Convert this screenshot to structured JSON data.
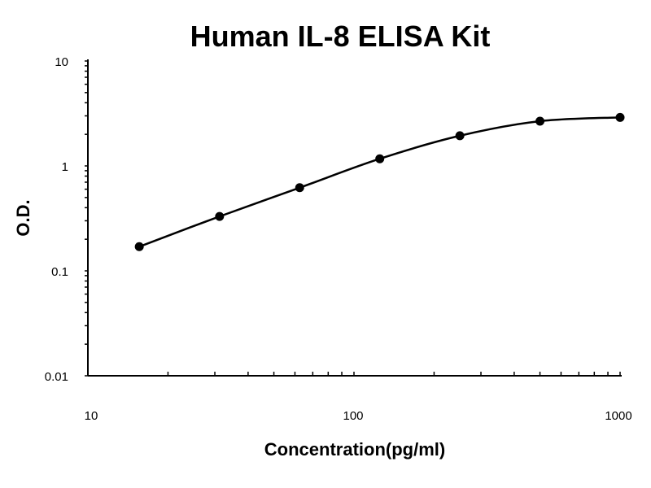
{
  "chart_data": {
    "type": "line",
    "title": "Human IL-8 ELISA Kit",
    "xlabel": "Concentration(pg/ml)",
    "ylabel": "O.D.",
    "xscale": "log",
    "yscale": "log",
    "xlim": [
      10,
      1000
    ],
    "ylim": [
      0.01,
      10
    ],
    "xticks": [
      "10",
      "100",
      "1000"
    ],
    "yticks": [
      "0.01",
      "0.1",
      "1",
      "10"
    ],
    "grid": false,
    "markers": true,
    "series": [
      {
        "x": [
          15.6,
          31.25,
          62.5,
          125,
          250,
          500,
          1000
        ],
        "y": [
          0.17,
          0.33,
          0.62,
          1.17,
          1.94,
          2.67,
          2.9
        ]
      }
    ],
    "colors": {
      "line": "#000000",
      "marker": "#000000"
    }
  }
}
